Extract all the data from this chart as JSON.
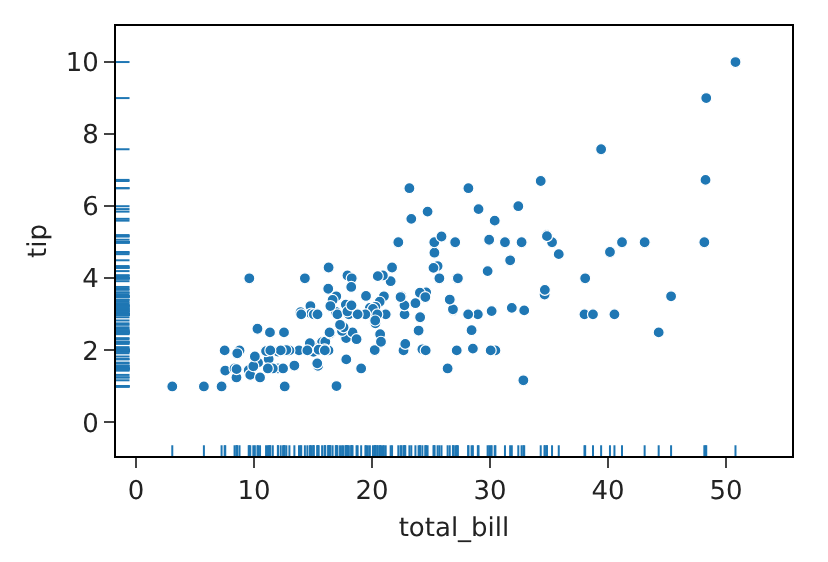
{
  "chart_data": {
    "type": "scatter",
    "xlabel": "total_bill",
    "ylabel": "tip",
    "marker": "circle",
    "grid": false,
    "xlim": [
      -1.7,
      55.6
    ],
    "xticks": [
      0,
      10,
      20,
      30,
      40,
      50
    ],
    "ylim": [
      -0.93,
      11
    ],
    "yticks": [
      0,
      2,
      4,
      6,
      8,
      10
    ],
    "series": [
      {
        "color": "#1f77b4",
        "x": [
          16.99,
          10.34,
          21.01,
          23.68,
          24.59,
          25.29,
          8.77,
          26.88,
          15.04,
          14.78,
          35.26,
          15.42,
          14.83,
          21.58,
          16.29,
          16.97,
          20.65,
          17.92,
          20.29,
          15.77,
          39.42,
          19.82,
          17.81,
          21.7,
          19.65,
          9.55,
          18.35,
          15.06,
          20.69,
          17.78,
          24.06,
          16.31,
          16.93,
          18.69,
          31.27,
          16.04,
          17.46,
          13.94,
          9.68,
          30.4,
          22.23,
          32.4,
          28.55,
          18.04,
          12.54,
          10.29,
          34.81,
          9.94,
          25.56,
          19.49,
          38.01,
          26.41,
          11.24,
          48.27,
          20.29,
          13.81,
          11.02,
          17.59,
          20.08,
          16.45,
          3.07,
          20.23,
          15.01,
          12.02,
          17.07,
          26.86,
          25.28,
          14.73,
          10.51,
          17.92,
          27.2,
          22.76,
          17.29,
          19.44,
          16.66,
          10.07,
          32.68,
          15.98,
          34.83,
          18.28,
          24.71,
          21.16,
          28.97,
          22.49,
          5.75,
          16.32,
          22.75,
          40.17,
          27.28,
          12.03,
          12.46,
          11.35,
          15.38,
          44.3,
          22.42,
          20.92,
          15.36,
          20.49,
          25.21,
          18.24,
          14.31,
          14.0,
          7.25,
          50.81,
          48.33,
          32.83,
          43.11,
          41.19,
          48.17,
          45.35,
          40.55,
          29.03,
          30.46,
          38.07,
          7.51,
          13.42,
          31.85,
          32.9,
          34.3,
          34.63,
          35.83,
          38.73,
          29.8,
          24.52,
          29.93,
          28.44,
          15.48,
          8.58,
          7.56,
          8.35,
          9.6,
          8.51,
          12.6,
          30.06,
          25.89,
          23.33,
          28.15,
          11.59,
          27.18,
          22.67,
          17.82,
          18.78,
          24.27,
          25.71,
          26.59,
          23.17,
          20.45,
          20.76,
          16.0,
          13.0,
          12.74,
          24.55,
          28.17,
          31.71,
          16.4,
          19.08,
          20.27,
          11.17,
          12.26,
          18.26,
          8.52,
          14.52,
          11.38,
          22.82,
          34.65,
          23.95,
          30.14,
          24.08,
          27.05,
          16.47
        ],
        "values": [
          1.01,
          1.66,
          3.5,
          3.31,
          3.61,
          4.71,
          2,
          3.12,
          1.96,
          3.23,
          5,
          1.57,
          3.02,
          3.92,
          3.71,
          3.5,
          3.35,
          4.08,
          2.75,
          2.23,
          7.58,
          3.18,
          2.34,
          4.3,
          3,
          1.45,
          2.5,
          3,
          2.45,
          3.27,
          3.6,
          2,
          3.07,
          2.31,
          5,
          2.24,
          2.54,
          3.06,
          1.32,
          5.6,
          5,
          6,
          2.05,
          3,
          2.5,
          2.6,
          5.2,
          1.56,
          4.34,
          3.51,
          3,
          1.5,
          1.76,
          6.73,
          3.21,
          2,
          1.98,
          2.64,
          3.15,
          2.47,
          1,
          2.01,
          2.09,
          1.97,
          3,
          3.14,
          5,
          2.2,
          1.25,
          3.08,
          4,
          3,
          2.71,
          3,
          3.4,
          1.83,
          5,
          2.03,
          5.17,
          4,
          5.85,
          3,
          3,
          3.5,
          1,
          4.3,
          3.25,
          4.73,
          4,
          1.5,
          1.5,
          2.5,
          3,
          2.5,
          3.48,
          4.08,
          1.64,
          4.06,
          4.29,
          3.76,
          4,
          3,
          1,
          10,
          9,
          1.17,
          5,
          5,
          5,
          3.5,
          3,
          5.92,
          2,
          4,
          2,
          1.58,
          3.18,
          3.11,
          6.7,
          3.55,
          4.67,
          3,
          4.2,
          3.48,
          5.07,
          2.56,
          2.02,
          1.92,
          1.44,
          1.5,
          4,
          1.25,
          1,
          2,
          5.16,
          5.65,
          3,
          1.5,
          2,
          2,
          1.75,
          3,
          2.03,
          4,
          3.41,
          6.5,
          3,
          2.24,
          2,
          2,
          2.01,
          2,
          6.5,
          4.5,
          2.5,
          1.5,
          2.83,
          1.5,
          2,
          3.25,
          1.48,
          2,
          2,
          2.18,
          3.68,
          2.55,
          3.09,
          2.92,
          5,
          3.23
        ]
      }
    ]
  }
}
